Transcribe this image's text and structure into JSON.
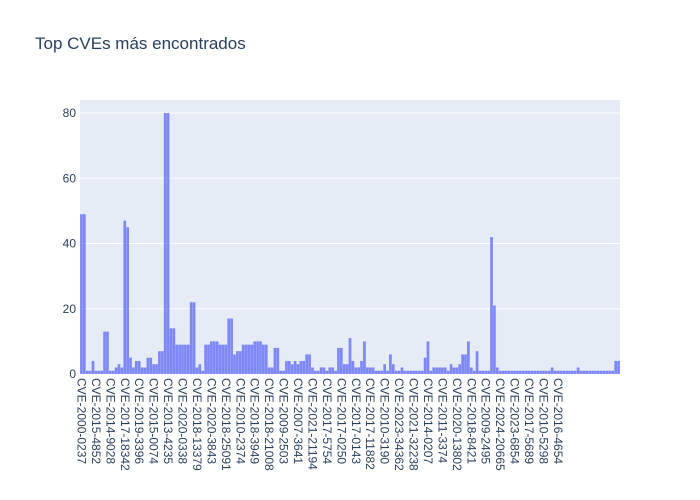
{
  "chart_data": {
    "type": "bar",
    "title": "Top CVEs más encontrados",
    "xlabel": "",
    "ylabel": "",
    "ylim": [
      0,
      84
    ],
    "yticks": [
      0,
      20,
      40,
      60,
      80
    ],
    "grid": true,
    "bar_color": "#636efa",
    "plot_bg": "#e5ecf6",
    "tick_labels": [
      "CVE-2000-0237",
      "CVE-2015-4852",
      "CVE-2014-9028",
      "CVE-2017-18342",
      "CVE-2019-3396",
      "CVE-2015-0074",
      "CVE-2013-4235",
      "CVE-2020-0338",
      "CVE-2018-13379",
      "CVE-2020-3843",
      "CVE-2018-25091",
      "CVE-2010-2374",
      "CVE-2018-3949",
      "CVE-2018-21008",
      "CVE-2009-2503",
      "CVE-2007-3641",
      "CVE-2021-21194",
      "CVE-2017-5754",
      "CVE-2017-0250",
      "CVE-2017-0143",
      "CVE-2017-11882",
      "CVE-2010-3190",
      "CVE-2023-34362",
      "CVE-2021-32238",
      "CVE-2014-0207",
      "CVE-2011-3374",
      "CVE-2020-13802",
      "CVE-2018-8421",
      "CVE-2009-2495",
      "CVE-2024-20665",
      "CVE-2023-6854",
      "CVE-2017-5689",
      "CVE-2010-5298",
      "CVE-2016-4654"
    ],
    "tick_every": 5,
    "values": [
      49,
      49,
      1,
      1,
      4,
      1,
      1,
      1,
      13,
      13,
      1,
      1,
      2,
      3,
      2,
      47,
      45,
      5,
      2,
      4,
      4,
      2,
      2,
      5,
      5,
      3,
      3,
      7,
      7,
      80,
      80,
      14,
      14,
      9,
      9,
      9,
      9,
      9,
      22,
      22,
      2,
      3,
      1,
      9,
      9,
      10,
      10,
      10,
      9,
      9,
      9,
      17,
      17,
      6,
      7,
      7,
      9,
      9,
      9,
      9,
      10,
      10,
      10,
      9,
      9,
      2,
      2,
      8,
      8,
      1,
      1,
      4,
      4,
      3,
      4,
      3,
      4,
      4,
      6,
      6,
      2,
      1,
      1,
      2,
      2,
      1,
      2,
      2,
      1,
      8,
      8,
      3,
      3,
      11,
      4,
      2,
      2,
      4,
      10,
      2,
      2,
      2,
      1,
      1,
      1,
      3,
      1,
      6,
      3,
      1,
      1,
      2,
      1,
      1,
      1,
      1,
      1,
      1,
      1,
      5,
      10,
      1,
      2,
      2,
      2,
      2,
      2,
      1,
      3,
      2,
      2,
      3,
      6,
      6,
      10,
      2,
      1,
      7,
      1,
      1,
      1,
      1,
      42,
      21,
      2,
      1,
      1,
      1,
      1,
      1,
      1,
      1,
      1,
      1,
      1,
      1,
      1,
      1,
      1,
      1,
      1,
      1,
      1,
      2,
      1,
      1,
      1,
      1,
      1,
      1,
      1,
      1,
      2,
      1,
      1,
      1,
      1,
      1,
      1,
      1,
      1,
      1,
      1,
      1,
      1,
      4,
      4
    ]
  }
}
